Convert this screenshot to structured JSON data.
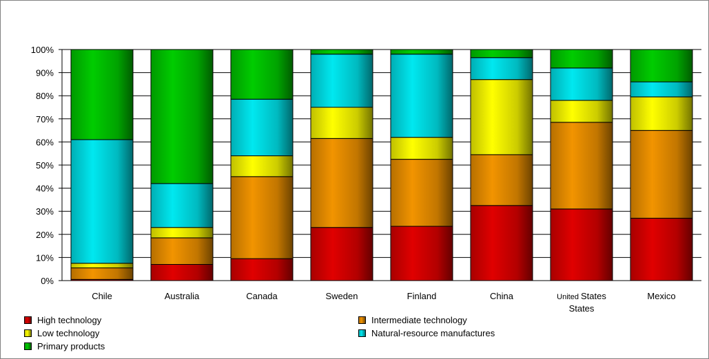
{
  "chart_data": {
    "type": "bar",
    "stacked": true,
    "percent": true,
    "categories": [
      "Chile",
      "Australia",
      "Canada",
      "Sweden",
      "Finland",
      "China",
      "United States",
      "Mexico"
    ],
    "category_labels": [
      [
        "Chile"
      ],
      [
        "Australia"
      ],
      [
        "Canada"
      ],
      [
        "Sweden"
      ],
      [
        "Finland"
      ],
      [
        "China"
      ],
      [
        "United States",
        "States"
      ],
      [
        "Mexico"
      ]
    ],
    "yticks": [
      "0%",
      "10%",
      "20%",
      "30%",
      "40%",
      "50%",
      "60%",
      "70%",
      "80%",
      "90%",
      "100%"
    ],
    "ylim": [
      0,
      100
    ],
    "grid": true,
    "legend_position": "bottom",
    "series": [
      {
        "name": "High technology",
        "color": "#e00000",
        "values": [
          0.5,
          7,
          9.5,
          23,
          23.5,
          32.5,
          31,
          27
        ]
      },
      {
        "name": "Intermediate technology",
        "color": "#f29400",
        "values": [
          5,
          11.5,
          35.5,
          38.5,
          29,
          22,
          37.5,
          38
        ]
      },
      {
        "name": "Low technology",
        "color": "#ffff00",
        "values": [
          2,
          4.5,
          9,
          13.5,
          9.5,
          32.5,
          9.5,
          14.5
        ]
      },
      {
        "name": "Natural-resource manufactures",
        "color": "#00e8f0",
        "values": [
          53.5,
          19,
          24.5,
          23,
          36,
          9.5,
          14,
          6.5
        ]
      },
      {
        "name": "Primary products",
        "color": "#00cc00",
        "values": [
          39,
          58,
          21.5,
          2,
          2,
          3.5,
          8,
          14
        ]
      }
    ]
  }
}
